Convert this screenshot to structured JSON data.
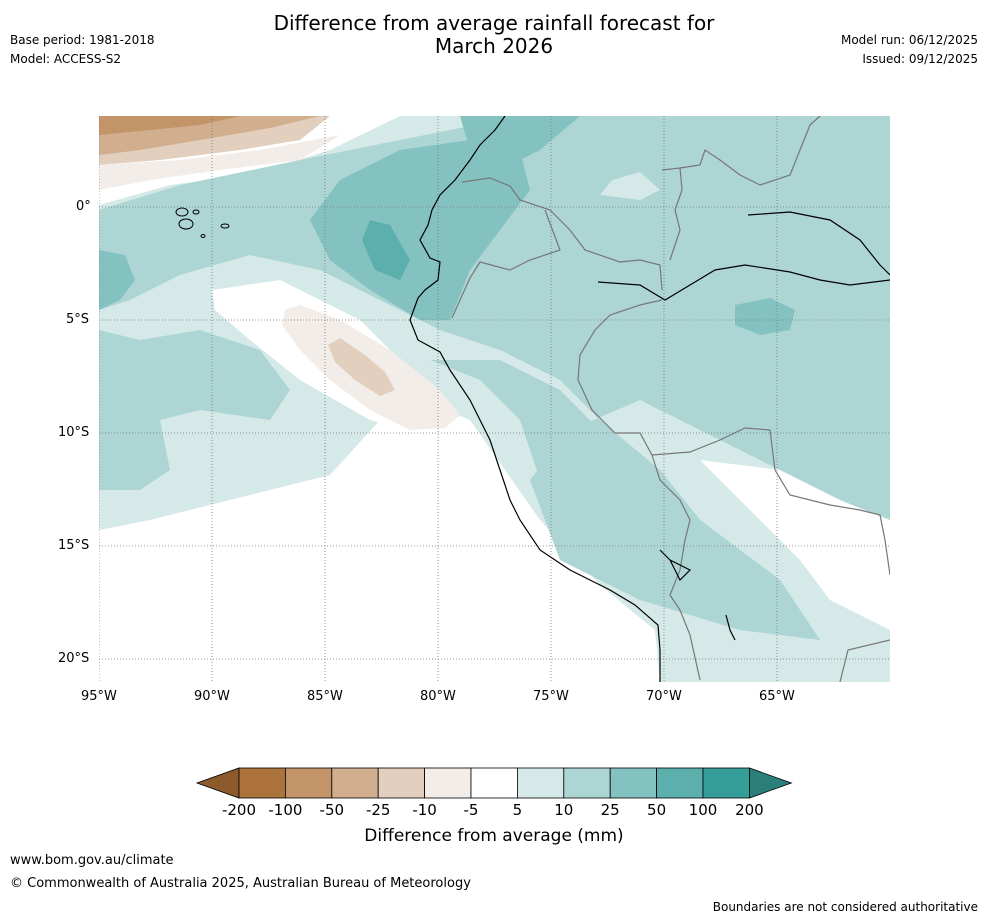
{
  "header": {
    "title_line1": "Difference from average rainfall forecast for",
    "title_line2": "March 2026",
    "base_period": "Base period: 1981-2018",
    "model": "Model: ACCESS-S2",
    "model_run": "Model run: 06/12/2025",
    "issued": "Issued: 09/12/2025"
  },
  "map": {
    "lat_ticks": [
      "0°",
      "5°S",
      "10°S",
      "15°S",
      "20°S"
    ],
    "lon_ticks": [
      "95°W",
      "90°W",
      "85°W",
      "80°W",
      "75°W",
      "70°W",
      "65°W"
    ]
  },
  "colorbar": {
    "labels": [
      "-200",
      "-100",
      "-50",
      "-25",
      "-10",
      "-5",
      "5",
      "10",
      "25",
      "50",
      "100",
      "200"
    ],
    "colors": [
      "#8c5a2b",
      "#ad733d",
      "#c29468",
      "#d1ae8e",
      "#e2cfbd",
      "#f2ede9",
      "#ffffff",
      "#d5e9e8",
      "#acd5d4",
      "#83c2c0",
      "#5bb0ad",
      "#359e99",
      "#2a7f7b"
    ],
    "title": "Difference from average (mm)"
  },
  "footer": {
    "website": "www.bom.gov.au/climate",
    "copyright": "© Commonwealth of Australia 2025, Australian Bureau of Meteorology",
    "disclaimer": "Boundaries are not considered authoritative"
  }
}
